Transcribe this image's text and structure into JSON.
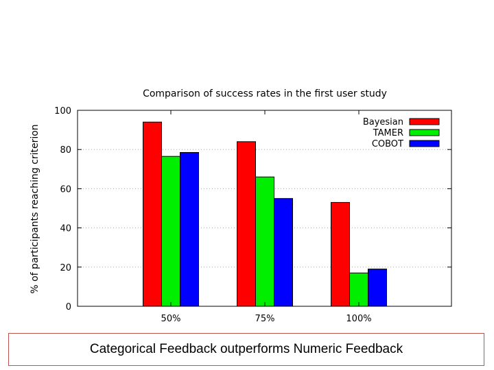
{
  "chart_data": {
    "type": "bar",
    "title": "Comparison of success rates in the first user study",
    "xlabel": "",
    "ylabel": "% of participants reaching criterion",
    "categories": [
      "50%",
      "75%",
      "100%"
    ],
    "series": [
      {
        "name": "Bayesian",
        "values": [
          94,
          84,
          53
        ],
        "color": "#ff0000"
      },
      {
        "name": "TAMER",
        "values": [
          76.5,
          66,
          17
        ],
        "color": "#00ee00"
      },
      {
        "name": "COBOT",
        "values": [
          78.5,
          55,
          19
        ],
        "color": "#0000ff"
      }
    ],
    "ylim": [
      0,
      100
    ],
    "yticks": [
      0,
      20,
      40,
      60,
      80,
      100
    ],
    "grid": true,
    "legend_position": "top-right"
  },
  "caption": "Categorical Feedback outperforms Numeric Feedback"
}
